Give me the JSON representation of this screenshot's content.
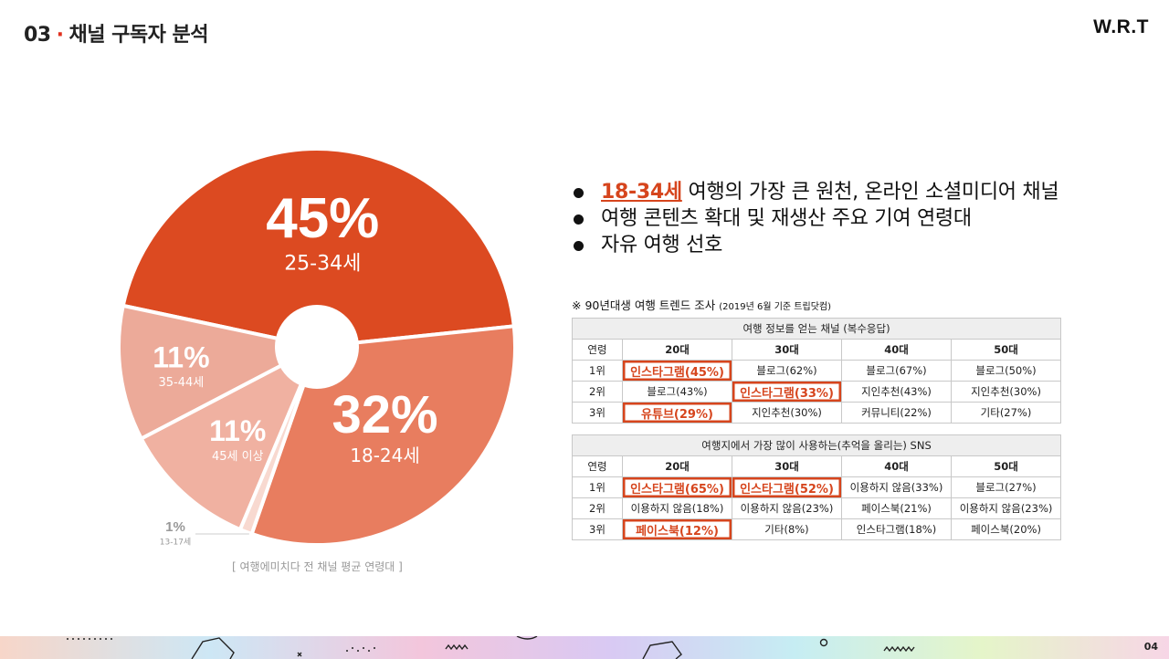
{
  "header": {
    "section_number": "03",
    "title": "채널 구독자 분석",
    "brand": "W.R.T"
  },
  "chart_data": {
    "type": "pie",
    "donut": true,
    "slices": [
      {
        "value_label": "45%",
        "value": 45,
        "label": "25-34세",
        "color": "#dc4a21"
      },
      {
        "value_label": "32%",
        "value": 32,
        "label": "18-24세",
        "color": "#e87d5f"
      },
      {
        "value_label": "1%",
        "value": 1,
        "label": "13-17세",
        "color": "#f8d9d0"
      },
      {
        "value_label": "11%",
        "value": 11,
        "label": "45세 이상",
        "color": "#f0b1a1"
      },
      {
        "value_label": "11%",
        "value": 11,
        "label": "35-44세",
        "color": "#ecaa99"
      }
    ],
    "caption": "[ 여행에미치다 전 채널 평균 연령대 ]"
  },
  "bullets": [
    {
      "highlight": "18-34세",
      "text": " 여행의 가장 큰 원천, 온라인 소셜미디어 채널"
    },
    {
      "highlight": "",
      "text": "여행 콘텐츠 확대 및 재생산 주요 기여 연령대"
    },
    {
      "highlight": "",
      "text": "자유 여행 선호"
    }
  ],
  "survey_note": {
    "text": "※ 90년대생 여행 트렌드 조사 ",
    "source": "(2019년 6월 기준 트립닷컴)"
  },
  "table1": {
    "caption": "여행 정보를 얻는 채널 (복수응답)",
    "headers": [
      "연령",
      "20대",
      "30대",
      "40대",
      "50대"
    ],
    "rows": [
      {
        "rank": "1위",
        "cells": [
          "인스타그램(45%)",
          "블로그(62%)",
          "블로그(67%)",
          "블로그(50%)"
        ]
      },
      {
        "rank": "2위",
        "cells": [
          "블로그(43%)",
          "인스타그램(33%)",
          "지인추천(43%)",
          "지인추천(30%)"
        ]
      },
      {
        "rank": "3위",
        "cells": [
          "유튜브(29%)",
          "지인추천(30%)",
          "커뮤니티(22%)",
          "기타(27%)"
        ]
      }
    ]
  },
  "table2": {
    "caption": "여행지에서 가장 많이 사용하는(추억을 올리는) SNS",
    "headers": [
      "연령",
      "20대",
      "30대",
      "40대",
      "50대"
    ],
    "rows": [
      {
        "rank": "1위",
        "cells": [
          "인스타그램(65%)",
          "인스타그램(52%)",
          "이용하지 않음(33%)",
          "블로그(27%)"
        ]
      },
      {
        "rank": "2위",
        "cells": [
          "이용하지 않음(18%)",
          "이용하지 않음(23%)",
          "페이스북(21%)",
          "이용하지 않음(23%)"
        ]
      },
      {
        "rank": "3위",
        "cells": [
          "페이스북(12%)",
          "기타(8%)",
          "인스타그램(18%)",
          "페이스북(20%)"
        ]
      }
    ]
  },
  "page_number": "04",
  "colors": {
    "accent": "#d6451d",
    "bullet": "#111111"
  }
}
